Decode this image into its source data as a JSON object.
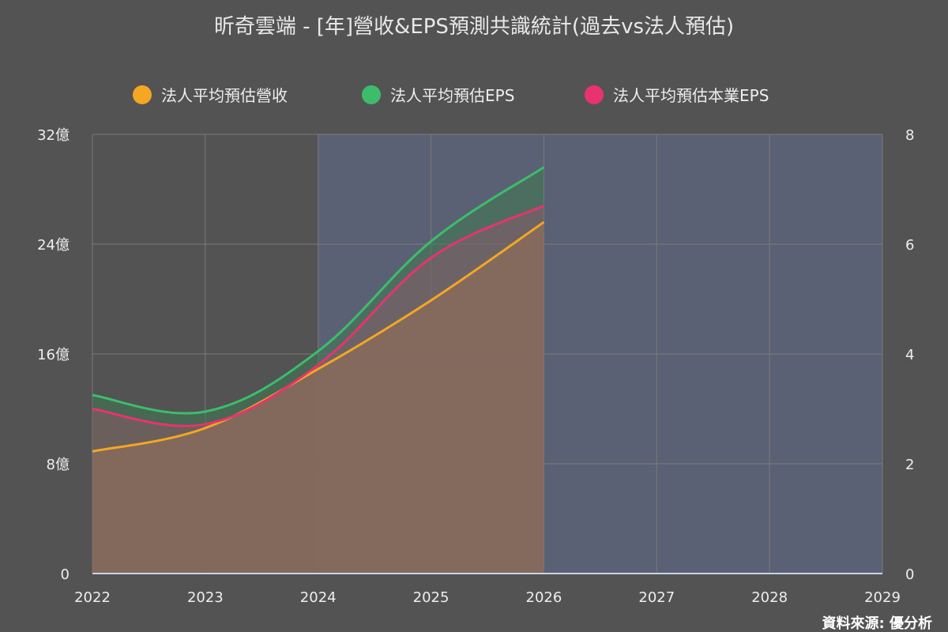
{
  "chart_data": {
    "type": "area",
    "title": "昕奇雲端 - [年]營收&EPS預測共識統計(過去vs法人預估)",
    "x_ticks": [
      "2022",
      "2023",
      "2024",
      "2025",
      "2026",
      "2027",
      "2028",
      "2029"
    ],
    "xlim": [
      2022,
      2029
    ],
    "forecast_region_start": 2024,
    "y_left": {
      "ylim": [
        0,
        32
      ],
      "ticks": [
        0,
        8,
        16,
        24,
        32
      ],
      "tick_labels": [
        "0",
        "8億",
        "16億",
        "24億",
        "32億"
      ]
    },
    "y_right": {
      "ylim": [
        0,
        8
      ],
      "ticks": [
        0,
        2,
        4,
        6,
        8
      ],
      "tick_labels": [
        "0",
        "2",
        "4",
        "6",
        "8"
      ]
    },
    "x": [
      2022,
      2023,
      2024,
      2025,
      2026
    ],
    "series": [
      {
        "name": "法人平均預估營收",
        "axis": "left",
        "color": "#f5a623",
        "values": [
          8.9,
          10.6,
          14.9,
          19.9,
          25.6
        ]
      },
      {
        "name": "法人平均預估EPS",
        "axis": "right",
        "color": "#3dbd6b",
        "values": [
          3.25,
          2.95,
          4.05,
          6.05,
          7.4
        ]
      },
      {
        "name": "法人平均預估本業EPS",
        "axis": "right",
        "color": "#e8336e",
        "values": [
          3.0,
          2.72,
          3.8,
          5.75,
          6.7
        ]
      }
    ],
    "legend_position": "top",
    "grid": true
  },
  "source_label": "資料來源: 優分析",
  "colors": {
    "background": "#535353",
    "forecast_region": "#5b6174",
    "grid": "#7a7a7a"
  }
}
